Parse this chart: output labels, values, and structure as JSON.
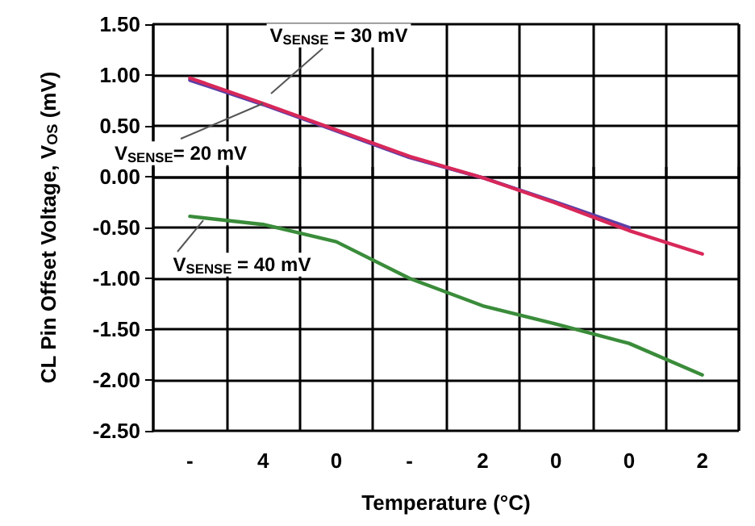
{
  "chart_data": {
    "type": "line",
    "xlabel": "Temperature (°C)",
    "ylabel": "CL Pin Offset Voltage, V$_{OS}$ (mV)",
    "categories": [
      "-",
      "4",
      "0",
      "-",
      "2",
      "0",
      "0",
      "2"
    ],
    "ylim": [
      -2.5,
      1.5
    ],
    "yticks": [
      {
        "value": -2.5,
        "label": "-2.50"
      },
      {
        "value": -2,
        "label": "-2.00"
      },
      {
        "value": -1.5,
        "label": "-1.50"
      },
      {
        "value": -1,
        "label": "-1.00"
      },
      {
        "value": -0.5,
        "label": "-0.50"
      },
      {
        "value": 0,
        "label": "0.00"
      },
      {
        "value": 0.5,
        "label": "0.50"
      },
      {
        "value": 1,
        "label": "1.00"
      },
      {
        "value": 1.5,
        "label": "1.50"
      }
    ],
    "grid": true,
    "marker": "none",
    "line_style": "solid",
    "series": [
      {
        "color": "#5b3fa8",
        "values": [
          0.95,
          0.71,
          0.45,
          0.19,
          -0.01,
          -0.25,
          -0.5,
          null
        ]
      },
      {
        "color": "#d8285a",
        "values": [
          0.97,
          0.72,
          0.46,
          0.2,
          -0.01,
          -0.26,
          -0.53,
          -0.76
        ]
      },
      {
        "color": "#3a8c3a",
        "values": [
          -0.39,
          -0.47,
          -0.64,
          -1.0,
          -1.27,
          -1.45,
          -1.64,
          -1.95
        ]
      }
    ],
    "annotations": [
      "V$_{SENSE}$ = 30 mV",
      {
        "text": "V$_{SENSE}$= 20 mV",
        "x": "4",
        "y": 0.72
      },
      {
        "text": "V$_{SENSE}$ = 40 mV",
        "y": -0.43
      }
    ]
  }
}
